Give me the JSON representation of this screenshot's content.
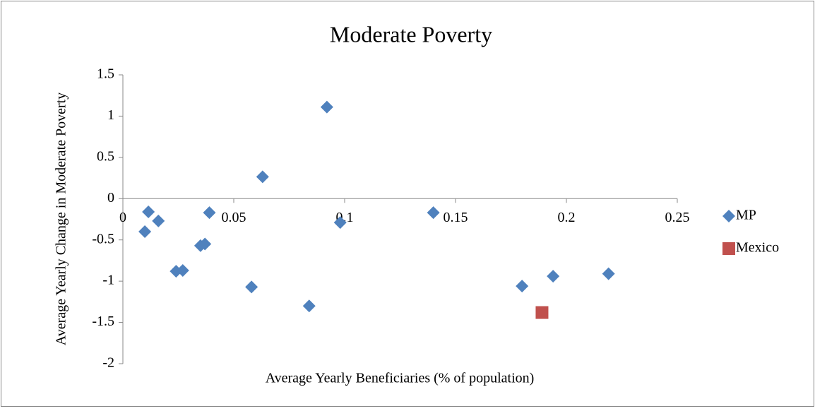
{
  "chart_data": {
    "type": "scatter",
    "title": "Moderate Poverty",
    "x_label": "Average Yearly Beneficiaries (% of population)",
    "y_label": "Average Yearly Change in Moderate Poverty",
    "xlim": [
      0,
      0.25
    ],
    "xticks": [
      0,
      0.05,
      0.1,
      0.15,
      0.2,
      0.25
    ],
    "ylim": [
      -2,
      1.5
    ],
    "yticks": [
      -2,
      -1.5,
      -1,
      -0.5,
      0,
      0.5,
      1,
      1.5
    ],
    "legend": "right",
    "series": [
      {
        "name": "MP",
        "color": "#4f81bd",
        "marker": "diamond",
        "x": [
          0.0099,
          0.0115,
          0.016,
          0.024,
          0.027,
          0.035,
          0.037,
          0.039,
          0.058,
          0.063,
          0.084,
          0.092,
          0.098,
          0.14,
          0.18,
          0.194,
          0.219
        ],
        "values": [
          -0.4,
          -0.16,
          -0.27,
          -0.88,
          -0.87,
          -0.57,
          -0.55,
          -0.17,
          -1.07,
          0.265,
          -1.3,
          1.11,
          -0.29,
          -0.17,
          -1.06,
          -0.94,
          -0.91
        ]
      },
      {
        "name": "Mexico",
        "color": "#c0504d",
        "marker": "square",
        "x": [
          0.189
        ],
        "values": [
          -1.38
        ]
      }
    ]
  }
}
